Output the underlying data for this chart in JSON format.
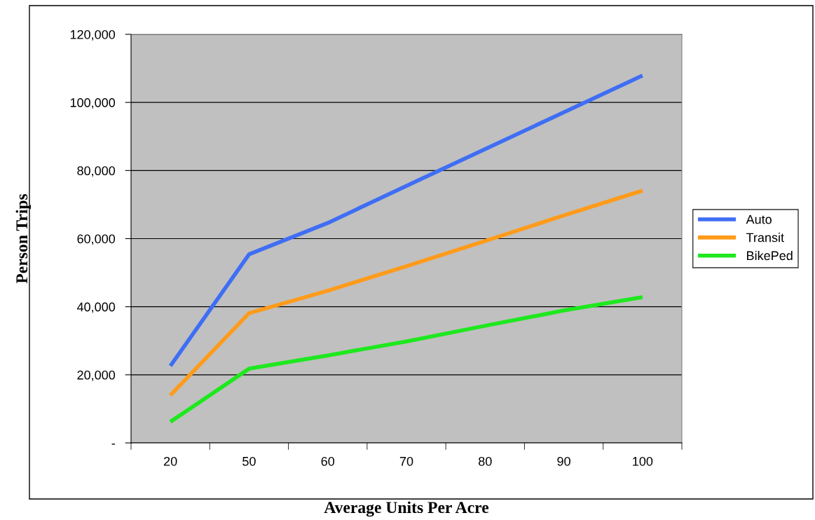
{
  "chart_data": {
    "type": "line",
    "xlabel": "Average Units Per Acre",
    "ylabel": "Person Trips",
    "categories": [
      "20",
      "50",
      "60",
      "70",
      "80",
      "90",
      "100"
    ],
    "series": [
      {
        "name": "Auto",
        "color": "#3f6ef5",
        "values": [
          22600,
          55400,
          64600,
          75500,
          86300,
          97100,
          107900
        ]
      },
      {
        "name": "Transit",
        "color": "#ff9b1a",
        "values": [
          14000,
          38100,
          44700,
          51900,
          59300,
          66800,
          74100
        ]
      },
      {
        "name": "BikePed",
        "color": "#1ee81e",
        "values": [
          6200,
          21800,
          25700,
          29800,
          34400,
          38900,
          42800
        ]
      }
    ],
    "ylim": [
      0,
      120000
    ],
    "yticks": [
      {
        "value": 0,
        "label": "-"
      },
      {
        "value": 20000,
        "label": "20,000"
      },
      {
        "value": 40000,
        "label": "40,000"
      },
      {
        "value": 60000,
        "label": "60,000"
      },
      {
        "value": 80000,
        "label": "80,000"
      },
      {
        "value": 100000,
        "label": "100,000"
      },
      {
        "value": 120000,
        "label": "120,000"
      }
    ],
    "grid": "y",
    "legend": "right",
    "marker": "none",
    "line_style": "solid"
  }
}
